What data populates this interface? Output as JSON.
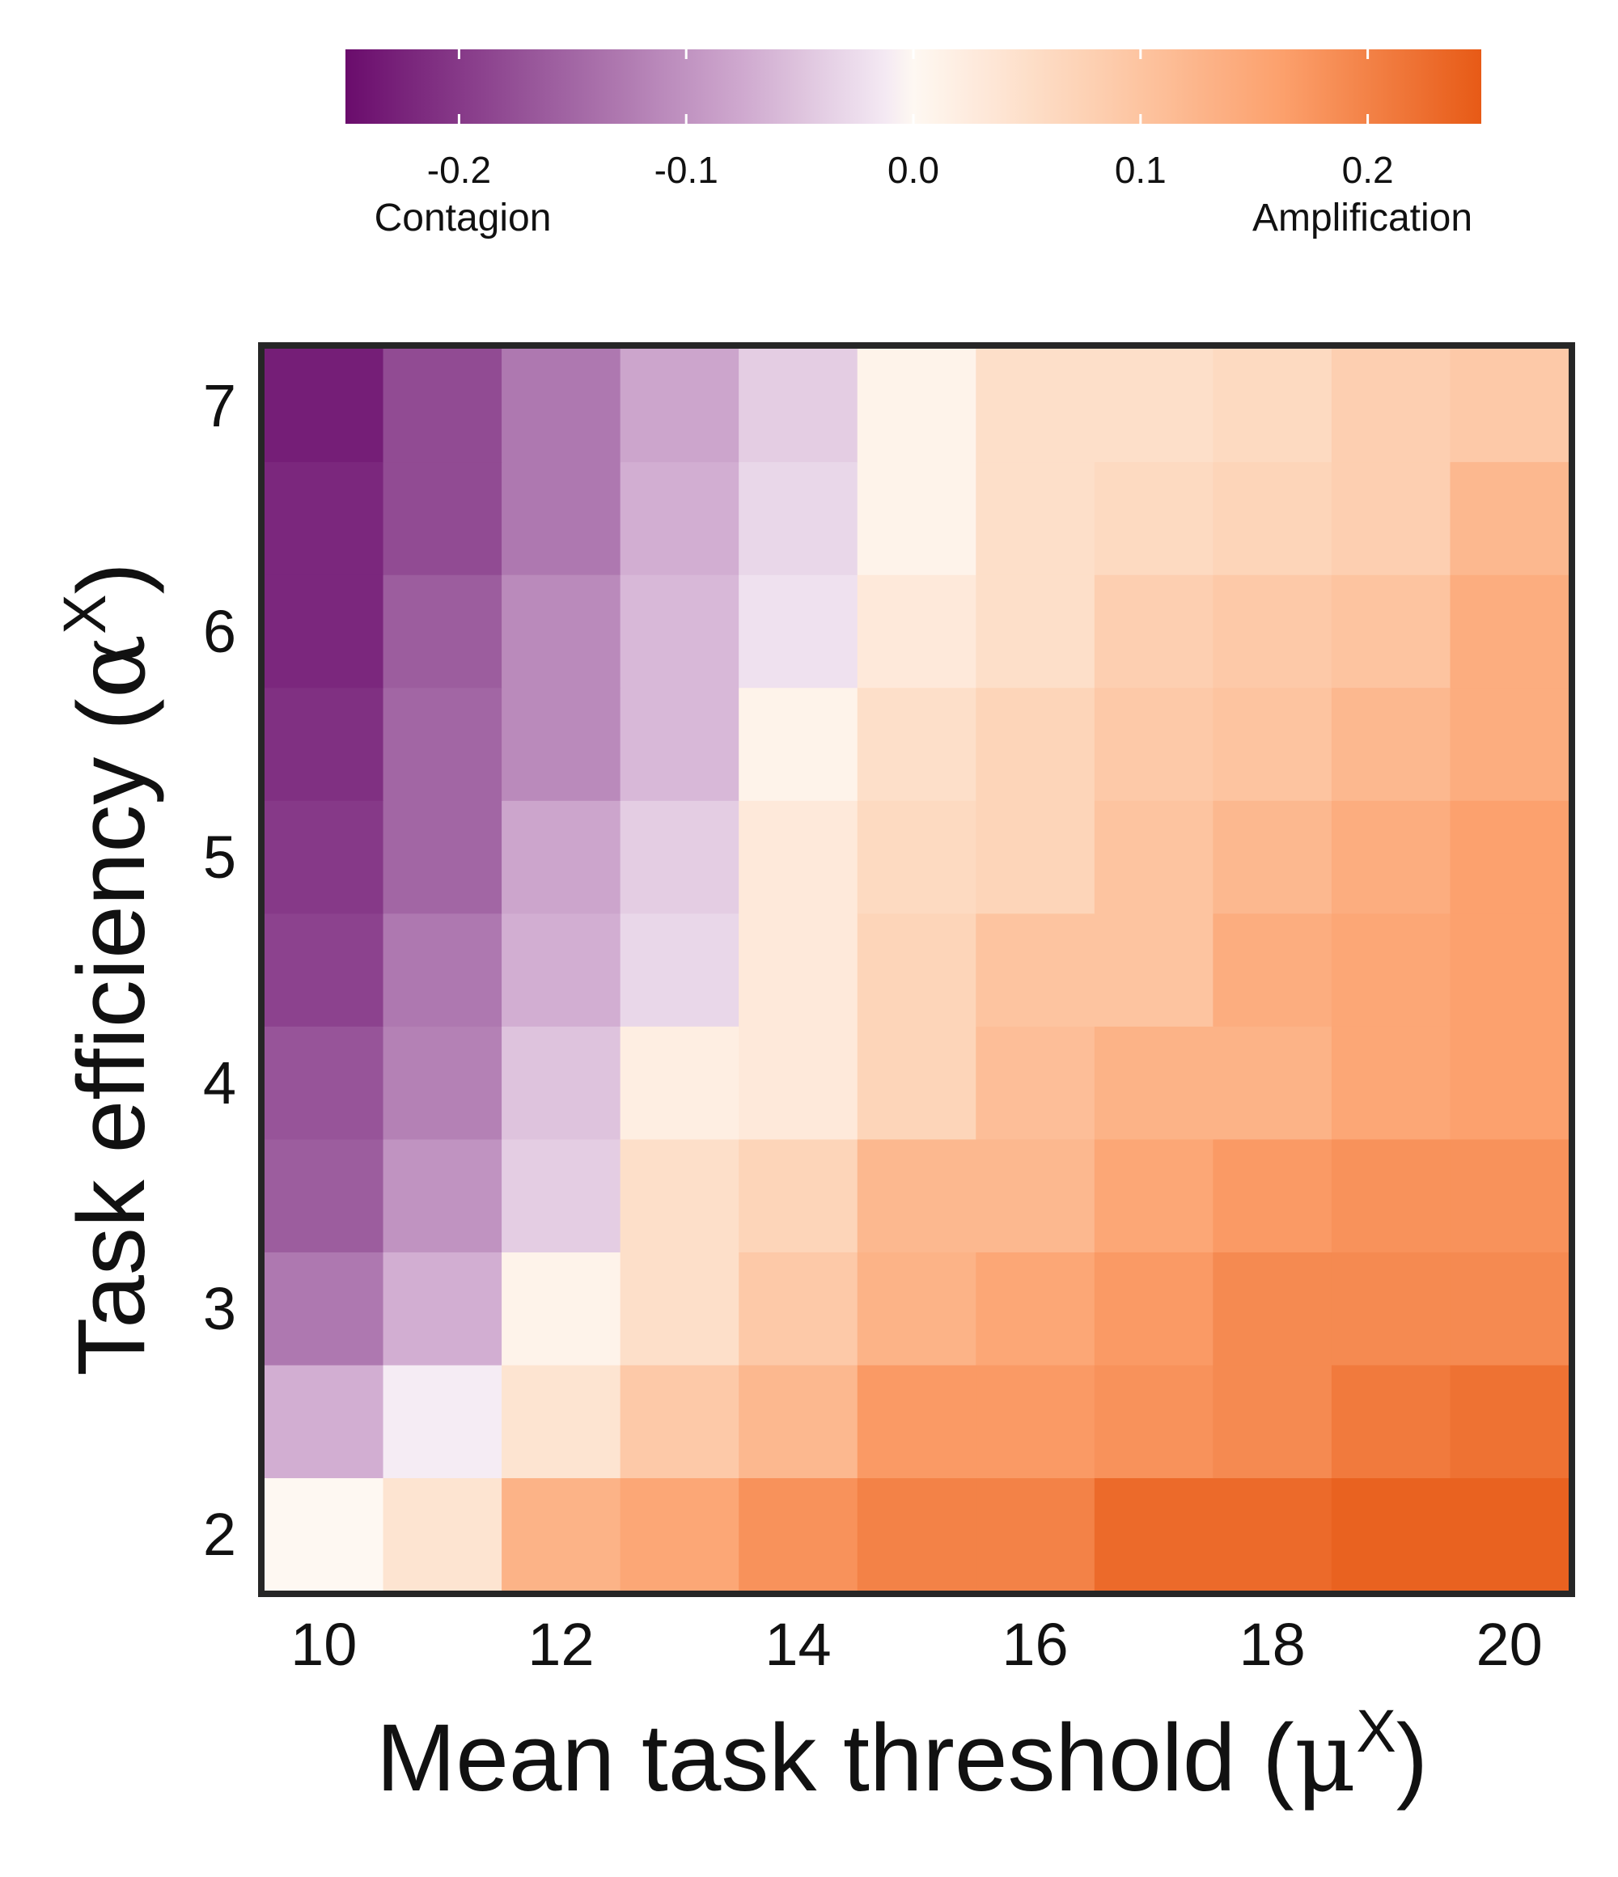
{
  "chart_data": {
    "type": "heatmap",
    "title": "",
    "xlabel": "Mean task threshold",
    "xlabel_symbol": "μ",
    "xlabel_sup": "X",
    "ylabel": "Task efficiency",
    "ylabel_symbol": "α",
    "ylabel_sup": "X",
    "x": [
      10,
      11,
      12,
      13,
      14,
      15,
      16,
      17,
      18,
      19,
      20
    ],
    "y": [
      2,
      2.5,
      3,
      3.5,
      4,
      4.5,
      5,
      5.5,
      6,
      6.5,
      7
    ],
    "x_ticks": [
      "10",
      "12",
      "14",
      "16",
      "18",
      "20"
    ],
    "y_ticks": [
      "2",
      "3",
      "4",
      "5",
      "6",
      "7"
    ],
    "values": [
      [
        0.0,
        0.04,
        0.13,
        0.15,
        0.18,
        0.2,
        0.2,
        0.23,
        0.23,
        0.24,
        0.24
      ],
      [
        -0.07,
        -0.01,
        0.04,
        0.09,
        0.12,
        0.17,
        0.17,
        0.18,
        0.19,
        0.21,
        0.22
      ],
      [
        -0.13,
        -0.07,
        0.01,
        0.05,
        0.09,
        0.13,
        0.15,
        0.17,
        0.19,
        0.19,
        0.19
      ],
      [
        -0.16,
        -0.1,
        -0.04,
        0.05,
        0.07,
        0.12,
        0.12,
        0.15,
        0.17,
        0.18,
        0.18
      ],
      [
        -0.17,
        -0.12,
        -0.05,
        0.02,
        0.03,
        0.07,
        0.11,
        0.13,
        0.13,
        0.15,
        0.16
      ],
      [
        -0.19,
        -0.13,
        -0.07,
        -0.03,
        0.03,
        0.07,
        0.1,
        0.1,
        0.14,
        0.15,
        0.16
      ],
      [
        -0.2,
        -0.15,
        -0.08,
        -0.04,
        0.03,
        0.06,
        0.07,
        0.1,
        0.12,
        0.14,
        0.16
      ],
      [
        -0.21,
        -0.15,
        -0.11,
        -0.06,
        0.01,
        0.05,
        0.07,
        0.09,
        0.1,
        0.12,
        0.14
      ],
      [
        -0.22,
        -0.16,
        -0.11,
        -0.06,
        -0.02,
        0.03,
        0.05,
        0.08,
        0.09,
        0.1,
        0.14
      ],
      [
        -0.22,
        -0.18,
        -0.13,
        -0.07,
        -0.03,
        0.01,
        0.05,
        0.06,
        0.07,
        0.08,
        0.12
      ],
      [
        -0.23,
        -0.18,
        -0.13,
        -0.08,
        -0.04,
        0.01,
        0.05,
        0.05,
        0.06,
        0.08,
        0.09
      ]
    ],
    "colorbar": {
      "range": [
        -0.25,
        0.25
      ],
      "ticks": [
        "-0.2",
        "-0.1",
        "0.0",
        "0.1",
        "0.2"
      ],
      "tick_values": [
        -0.2,
        -0.1,
        0.0,
        0.1,
        0.2
      ],
      "left_label": "Contagion",
      "right_label": "Amplification",
      "placement": "top",
      "colormap": "PuOr reversed (purple negative, orange positive)"
    },
    "grid": false
  },
  "colors": {
    "negative_end": "#6a0c6c",
    "neutral": "#fbf6fa",
    "positive_end": "#e75a16",
    "frame": "#262626"
  }
}
